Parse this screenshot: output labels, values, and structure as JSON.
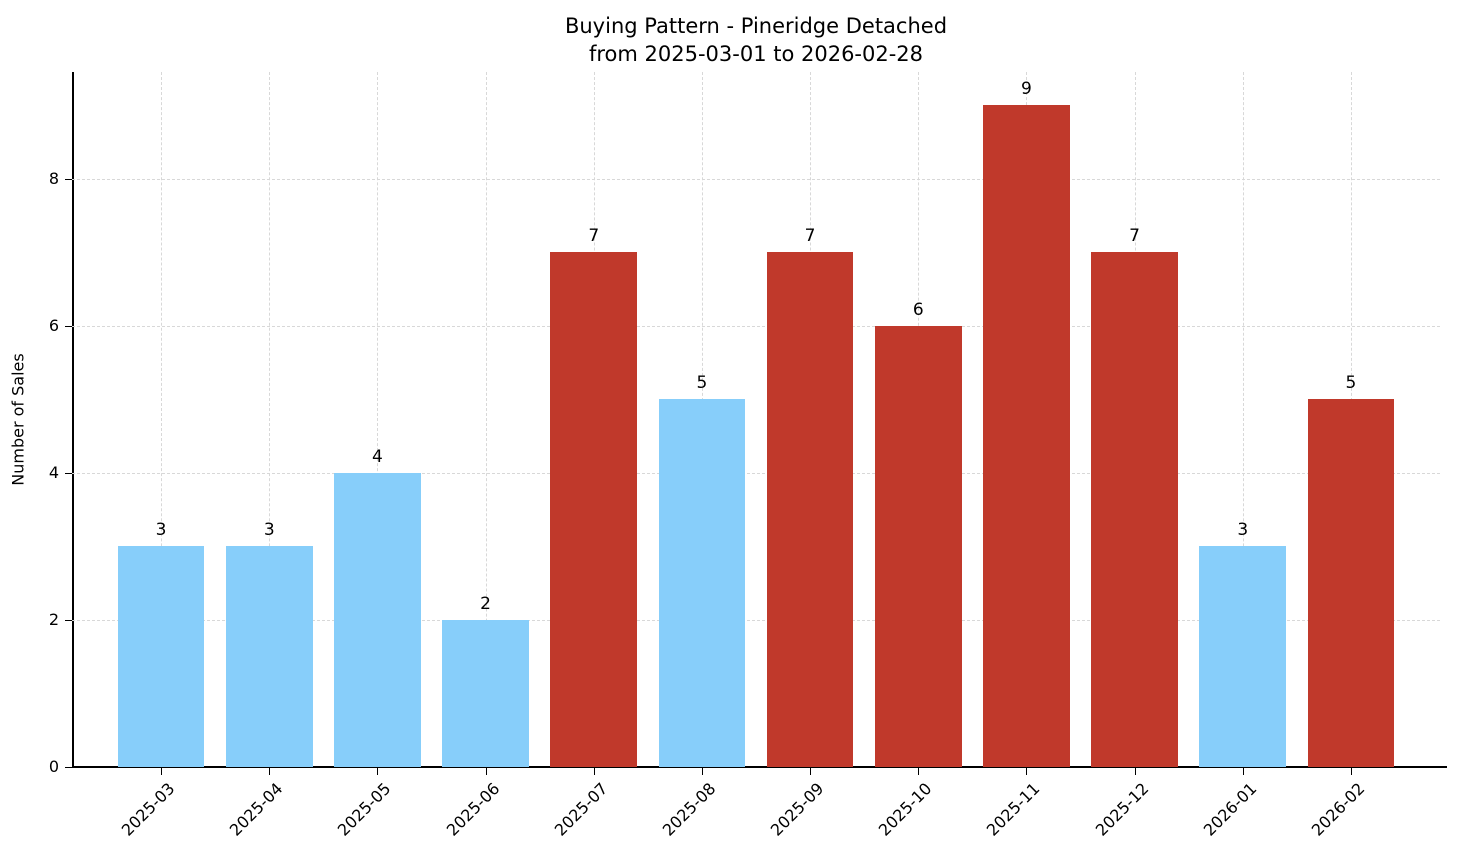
{
  "title": {
    "line1": "Buying Pattern - Pineridge Detached",
    "line2": "from 2025-03-01 to 2026-02-28"
  },
  "chart_data": {
    "type": "bar",
    "title": "Buying Pattern - Pineridge Detached\nfrom 2025-03-01 to 2026-02-28",
    "xlabel": "",
    "ylabel": "Number of Sales",
    "categories": [
      "2025-03",
      "2025-04",
      "2025-05",
      "2025-06",
      "2025-07",
      "2025-08",
      "2025-09",
      "2025-10",
      "2025-11",
      "2025-12",
      "2026-01",
      "2026-02"
    ],
    "values": [
      3,
      3,
      4,
      2,
      7,
      5,
      7,
      6,
      9,
      7,
      3,
      5
    ],
    "value_labels": [
      "3",
      "3",
      "4",
      "2",
      "7",
      "5",
      "7",
      "6",
      "9",
      "7",
      "3",
      "5"
    ],
    "bar_colors": [
      "#87CEFA",
      "#87CEFA",
      "#87CEFA",
      "#87CEFA",
      "#C0392B",
      "#87CEFA",
      "#C0392B",
      "#C0392B",
      "#C0392B",
      "#C0392B",
      "#87CEFA",
      "#C0392B"
    ],
    "colors": {
      "blue_bar": "#87CEFA",
      "red_bar": "#C0392B",
      "grid": "#d8d8d8",
      "axis": "#000000",
      "text": "#000000"
    },
    "ylim": [
      0,
      9.45
    ],
    "yticks": [
      0,
      2,
      4,
      6,
      8
    ],
    "grid": "dashed, both axes",
    "legend": "none",
    "x_tick_rotation": 45
  }
}
